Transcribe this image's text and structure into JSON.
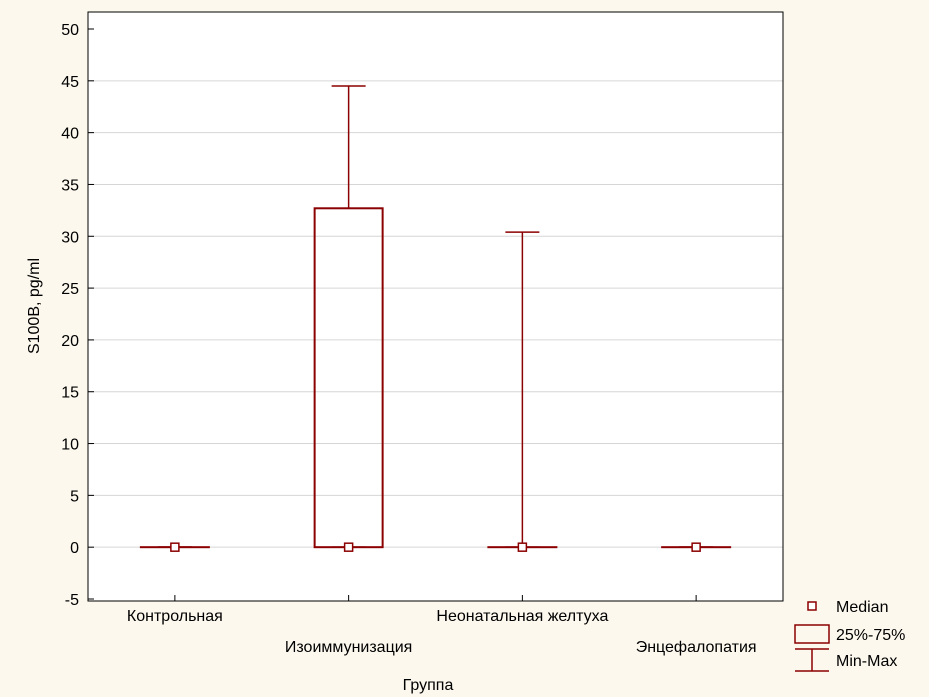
{
  "colors": {
    "background": "#FCF8EE",
    "plot_background": "#FFFFFF",
    "series": "#8B0000",
    "grid": "#D6D6D6",
    "axis": "#000000"
  },
  "chart_data": {
    "type": "box",
    "title": "",
    "xlabel": "Группа",
    "ylabel": "S100B, pg/ml",
    "ylim": [
      -5,
      50
    ],
    "yticks": [
      "-5",
      "0",
      "5",
      "10",
      "15",
      "20",
      "25",
      "30",
      "35",
      "40",
      "45",
      "50"
    ],
    "grid": true,
    "legend_position": "bottom-right",
    "categories": [
      "Контрольная",
      "Изоиммунизация",
      "Неонатальная желтуха",
      "Энцефалопатия"
    ],
    "series": [
      {
        "category": "Контрольная",
        "min": 0,
        "q1": 0,
        "median": 0,
        "q3": 0,
        "max": 0
      },
      {
        "category": "Изоиммунизация",
        "min": 0,
        "q1": 0,
        "median": 0,
        "q3": 32.7,
        "max": 44.5
      },
      {
        "category": "Неонатальная желтуха",
        "min": 0,
        "q1": 0,
        "median": 0,
        "q3": 0,
        "max": 30.4
      },
      {
        "category": "Энцефалопатия",
        "min": 0,
        "q1": 0,
        "median": 0,
        "q3": 0,
        "max": 0
      }
    ],
    "legend": [
      {
        "key": "median",
        "label": "Median"
      },
      {
        "key": "box",
        "label": "25%-75%"
      },
      {
        "key": "whisker",
        "label": "Min-Max"
      }
    ]
  }
}
